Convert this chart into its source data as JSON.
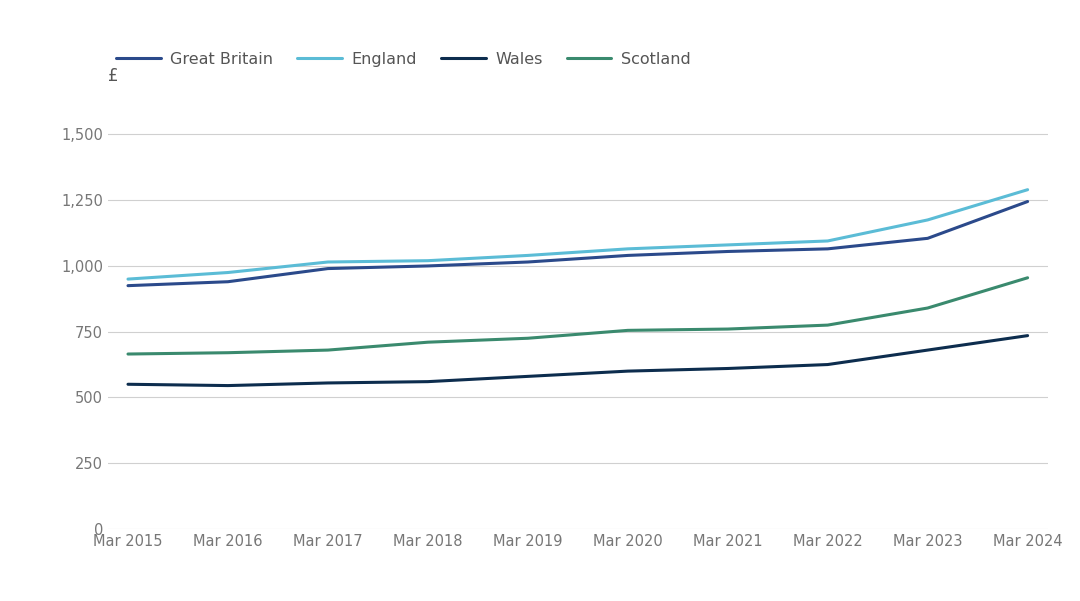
{
  "legend_labels": [
    "Great Britain",
    "England",
    "Wales",
    "Scotland"
  ],
  "colors": {
    "Great Britain": "#2b4a8b",
    "England": "#5bbcd6",
    "Wales": "#0d2d4e",
    "Scotland": "#3a8a6e"
  },
  "x_labels": [
    "Mar 2015",
    "Mar 2016",
    "Mar 2017",
    "Mar 2018",
    "Mar 2019",
    "Mar 2020",
    "Mar 2021",
    "Mar 2022",
    "Mar 2023",
    "Mar 2024"
  ],
  "Great Britain": [
    925,
    940,
    990,
    1000,
    1015,
    1040,
    1055,
    1065,
    1105,
    1245
  ],
  "England": [
    950,
    975,
    1015,
    1020,
    1040,
    1065,
    1080,
    1095,
    1175,
    1290
  ],
  "Wales": [
    550,
    545,
    555,
    560,
    580,
    600,
    610,
    625,
    680,
    735
  ],
  "Scotland": [
    665,
    670,
    680,
    710,
    725,
    755,
    760,
    775,
    840,
    955
  ],
  "ylim": [
    0,
    1600
  ],
  "yticks": [
    0,
    250,
    500,
    750,
    1000,
    1250,
    1500
  ],
  "background_color": "#ffffff",
  "grid_color": "#d0d0d0",
  "pound_label": "£",
  "line_width": 2.2
}
